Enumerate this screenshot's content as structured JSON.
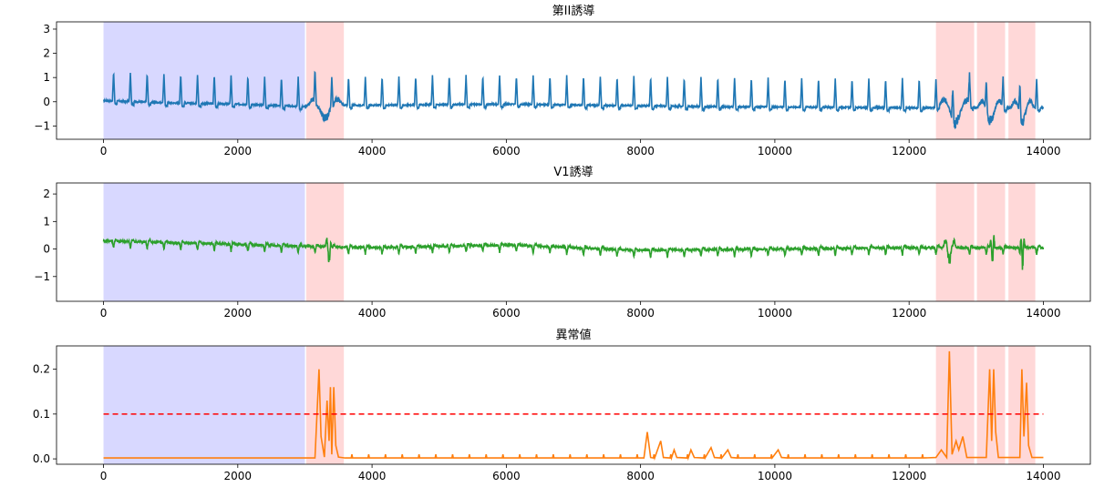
{
  "chart_data": [
    {
      "type": "line",
      "title": "第II誘導",
      "xlim": [
        -700,
        14700
      ],
      "ylim": [
        -1.55,
        3.3
      ],
      "xticks": [
        0,
        2000,
        4000,
        6000,
        8000,
        10000,
        12000,
        14000
      ],
      "yticks": [
        -1,
        0,
        1,
        2,
        3
      ],
      "series": [
        {
          "color": "#1f77b4",
          "signal": {
            "length": 14000,
            "baseline": [
              [
                0,
                0.05
              ],
              [
                1000,
                -0.05
              ],
              [
                2000,
                -0.1
              ],
              [
                3000,
                -0.2
              ],
              [
                3600,
                -0.15
              ],
              [
                6000,
                -0.1
              ],
              [
                9000,
                -0.2
              ],
              [
                12000,
                -0.25
              ],
              [
                14000,
                -0.25
              ]
            ],
            "beats": {
              "start": 150,
              "interval": 250,
              "end": 14000,
              "amplitude": 1.2,
              "width": 18,
              "negative_depth": -0.12
            },
            "noise": 0.03,
            "anomaly_bursts": [
              [
                3000,
                3600,
                0.6
              ],
              [
                12400,
                12980,
                0.7
              ],
              [
                13000,
                13430,
                0.6
              ],
              [
                13500,
                13880,
                0.6
              ]
            ]
          }
        }
      ],
      "highlight_regions": [
        {
          "range": [
            0,
            3000
          ],
          "color": "#d8d8ff"
        },
        {
          "range": [
            3020,
            3580
          ],
          "color": "#ffd8d8"
        },
        {
          "range": [
            12400,
            12970
          ],
          "color": "#ffd8d8"
        },
        {
          "range": [
            13010,
            13430
          ],
          "color": "#ffd8d8"
        },
        {
          "range": [
            13480,
            13880
          ],
          "color": "#ffd8d8"
        }
      ]
    },
    {
      "type": "line",
      "title": "V1誘導",
      "xlim": [
        -700,
        14700
      ],
      "ylim": [
        -1.9,
        2.4
      ],
      "xticks": [
        0,
        2000,
        4000,
        6000,
        8000,
        10000,
        12000,
        14000
      ],
      "yticks": [
        -1,
        0,
        1,
        2
      ],
      "series": [
        {
          "color": "#2ca02c",
          "signal": {
            "length": 14000,
            "baseline": [
              [
                0,
                0.3
              ],
              [
                1500,
                0.2
              ],
              [
                3000,
                0.1
              ],
              [
                4000,
                0.05
              ],
              [
                6000,
                0.15
              ],
              [
                8000,
                -0.05
              ],
              [
                10000,
                0.0
              ],
              [
                12000,
                0.05
              ],
              [
                14000,
                0.05
              ]
            ],
            "beats": {
              "start": 150,
              "interval": 250,
              "end": 14000,
              "amplitude": -0.25,
              "width": 18,
              "negative_depth": 0.05
            },
            "noise": 0.04,
            "anomaly_bursts": [
              [
                3300,
                3420,
                0.6
              ],
              [
                12500,
                12700,
                0.6
              ],
              [
                13200,
                13280,
                0.8
              ],
              [
                13650,
                13730,
                0.9
              ]
            ]
          }
        }
      ],
      "highlight_regions": [
        {
          "range": [
            0,
            3000
          ],
          "color": "#d8d8ff"
        },
        {
          "range": [
            3020,
            3580
          ],
          "color": "#ffd8d8"
        },
        {
          "range": [
            12400,
            12970
          ],
          "color": "#ffd8d8"
        },
        {
          "range": [
            13010,
            13430
          ],
          "color": "#ffd8d8"
        },
        {
          "range": [
            13480,
            13880
          ],
          "color": "#ffd8d8"
        }
      ]
    },
    {
      "type": "line",
      "title": "異常値",
      "xlim": [
        -700,
        14700
      ],
      "ylim": [
        -0.012,
        0.252
      ],
      "xticks": [
        0,
        2000,
        4000,
        6000,
        8000,
        10000,
        12000,
        14000
      ],
      "yticks": [
        0.0,
        0.1,
        0.2
      ],
      "ytick_labels": [
        "0.0",
        "0.1",
        "0.2"
      ],
      "threshold": {
        "value": 0.1,
        "color": "#ff0000",
        "style": "dashed"
      },
      "series": [
        {
          "color": "#ff7f0e",
          "points": [
            [
              0,
              0.002
            ],
            [
              3150,
              0.002
            ],
            [
              3180,
              0.1
            ],
            [
              3210,
              0.2
            ],
            [
              3240,
              0.05
            ],
            [
              3290,
              0.004
            ],
            [
              3330,
              0.13
            ],
            [
              3360,
              0.04
            ],
            [
              3380,
              0.16
            ],
            [
              3400,
              0.01
            ],
            [
              3430,
              0.16
            ],
            [
              3460,
              0.03
            ],
            [
              3500,
              0.004
            ],
            [
              3600,
              0.002
            ],
            [
              8050,
              0.002
            ],
            [
              8100,
              0.06
            ],
            [
              8150,
              0.003
            ],
            [
              8300,
              0.04
            ],
            [
              8340,
              0.003
            ],
            [
              8500,
              0.02
            ],
            [
              8540,
              0.003
            ],
            [
              8750,
              0.02
            ],
            [
              8800,
              0.003
            ],
            [
              9050,
              0.025
            ],
            [
              9100,
              0.003
            ],
            [
              9300,
              0.02
            ],
            [
              9350,
              0.003
            ],
            [
              10050,
              0.02
            ],
            [
              10100,
              0.003
            ],
            [
              12400,
              0.003
            ],
            [
              12480,
              0.02
            ],
            [
              12560,
              0.003
            ],
            [
              12600,
              0.24
            ],
            [
              12640,
              0.01
            ],
            [
              12700,
              0.04
            ],
            [
              12740,
              0.02
            ],
            [
              12800,
              0.05
            ],
            [
              12860,
              0.003
            ],
            [
              13150,
              0.003
            ],
            [
              13200,
              0.2
            ],
            [
              13230,
              0.04
            ],
            [
              13260,
              0.2
            ],
            [
              13290,
              0.06
            ],
            [
              13330,
              0.003
            ],
            [
              13650,
              0.003
            ],
            [
              13680,
              0.2
            ],
            [
              13710,
              0.05
            ],
            [
              13750,
              0.17
            ],
            [
              13780,
              0.03
            ],
            [
              13830,
              0.003
            ],
            [
              14000,
              0.003
            ]
          ],
          "small_spikes": {
            "start": 3700,
            "end": 12300,
            "interval": 250,
            "height": 0.01
          }
        }
      ],
      "highlight_regions": [
        {
          "range": [
            0,
            3000
          ],
          "color": "#d8d8ff"
        },
        {
          "range": [
            3020,
            3580
          ],
          "color": "#ffd8d8"
        },
        {
          "range": [
            12400,
            12970
          ],
          "color": "#ffd8d8"
        },
        {
          "range": [
            13010,
            13430
          ],
          "color": "#ffd8d8"
        },
        {
          "range": [
            13480,
            13880
          ],
          "color": "#ffd8d8"
        }
      ]
    }
  ]
}
